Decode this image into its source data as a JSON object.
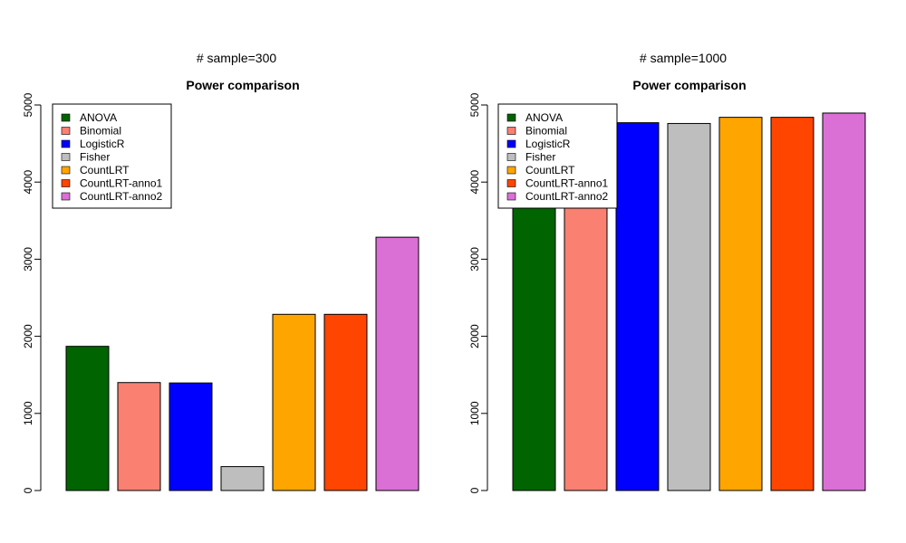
{
  "chart_data": [
    {
      "type": "bar",
      "caption": "# sample=300",
      "title": "Power comparison",
      "xlabel": "",
      "ylabel": "",
      "ylim": [
        0,
        5000
      ],
      "yticks": [
        0,
        1000,
        2000,
        3000,
        4000,
        5000
      ],
      "legend": "top-left",
      "categories": [
        "ANOVA",
        "Binomial",
        "LogisticR",
        "Fisher",
        "CountLRT",
        "CountLRT-anno1",
        "CountLRT-anno2"
      ],
      "colors": [
        "#006400",
        "#FA8072",
        "#0000FF",
        "#BEBEBE",
        "#FFA500",
        "#FF4500",
        "#DA70D6"
      ],
      "values": [
        1870,
        1400,
        1395,
        310,
        2285,
        2285,
        3285
      ]
    },
    {
      "type": "bar",
      "caption": "# sample=1000",
      "title": "Power comparison",
      "xlabel": "",
      "ylabel": "",
      "ylim": [
        0,
        5000
      ],
      "yticks": [
        0,
        1000,
        2000,
        3000,
        4000,
        5000
      ],
      "legend": "top-left",
      "categories": [
        "ANOVA",
        "Binomial",
        "LogisticR",
        "Fisher",
        "CountLRT",
        "CountLRT-anno1",
        "CountLRT-anno2"
      ],
      "colors": [
        "#006400",
        "#FA8072",
        "#0000FF",
        "#BEBEBE",
        "#FFA500",
        "#FF4500",
        "#DA70D6"
      ],
      "values": [
        4690,
        4690,
        4770,
        4760,
        4840,
        4840,
        4895
      ]
    }
  ]
}
